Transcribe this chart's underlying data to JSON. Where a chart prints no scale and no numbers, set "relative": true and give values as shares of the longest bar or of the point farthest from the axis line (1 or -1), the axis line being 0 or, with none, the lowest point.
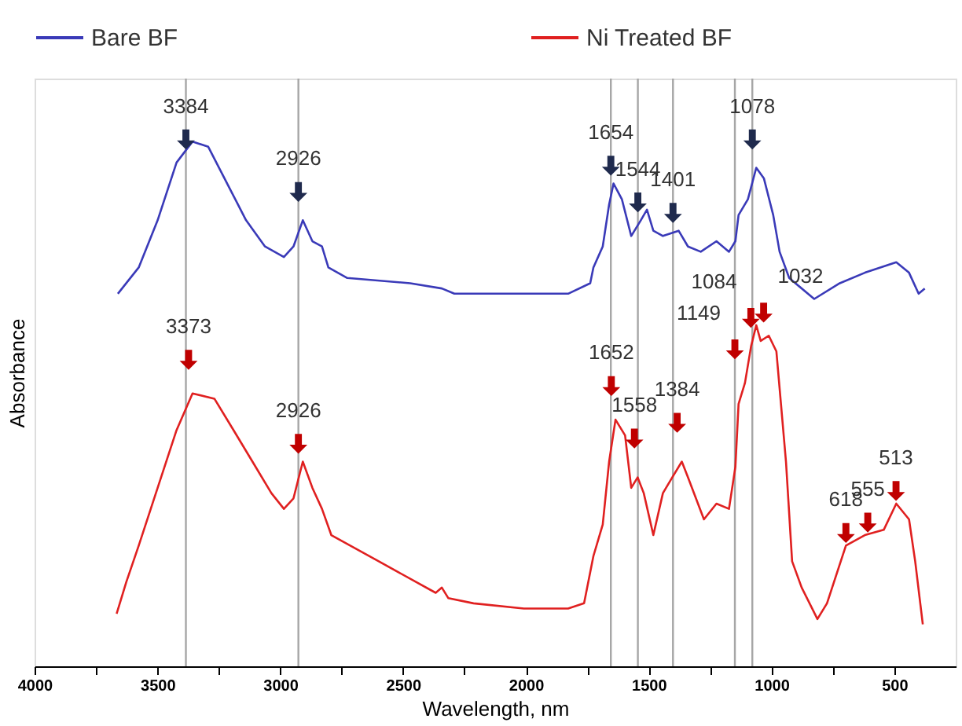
{
  "chart_data": {
    "type": "line",
    "relative": true,
    "xlabel": "Wavelength, nm",
    "ylabel": "Absorbance",
    "legend": "top",
    "tick_labels": "x",
    "grid": false,
    "xlim": [
      4000,
      250
    ],
    "xticks": [
      4000,
      {
        "value": 3750,
        "label": null
      },
      3500,
      {
        "value": 3250,
        "label": null
      },
      3000,
      {
        "value": 2750,
        "label": null
      },
      2500,
      {
        "value": 2250,
        "label": null
      },
      2000,
      {
        "value": 1750,
        "label": null
      },
      1500,
      {
        "value": 1250,
        "label": null
      },
      1000,
      {
        "value": 750,
        "label": null
      },
      500
    ],
    "series": [
      {
        "name": "Bare BF",
        "color": "#3a3ab8",
        "x": [
          3661,
          3576,
          3499,
          3422,
          3357,
          3293,
          3216,
          3139,
          3062,
          2985,
          2946,
          2908,
          2869,
          2830,
          2804,
          2727,
          2471,
          2342,
          2291,
          2085,
          1828,
          1738,
          1725,
          1687,
          1661,
          1643,
          1609,
          1571,
          1532,
          1507,
          1481,
          1442,
          1378,
          1340,
          1288,
          1224,
          1173,
          1147,
          1134,
          1096,
          1062,
          1031,
          993,
          967,
          928,
          826,
          722,
          620,
          492,
          440,
          401,
          376
        ],
        "values": [
          0.71,
          0.76,
          0.85,
          0.96,
          1.0,
          0.99,
          0.92,
          0.85,
          0.8,
          0.78,
          0.8,
          0.85,
          0.81,
          0.8,
          0.76,
          0.74,
          0.73,
          0.72,
          0.71,
          0.71,
          0.71,
          0.73,
          0.76,
          0.8,
          0.88,
          0.92,
          0.89,
          0.82,
          0.85,
          0.87,
          0.83,
          0.82,
          0.83,
          0.8,
          0.79,
          0.81,
          0.79,
          0.81,
          0.86,
          0.89,
          0.95,
          0.93,
          0.86,
          0.79,
          0.74,
          0.7,
          0.73,
          0.75,
          0.77,
          0.75,
          0.71,
          0.72
        ]
      },
      {
        "name": "Ni Treated BF",
        "color": "#e02020",
        "x": [
          3666,
          3627,
          3576,
          3499,
          3422,
          3357,
          3268,
          3190,
          3113,
          3036,
          2985,
          2946,
          2908,
          2869,
          2830,
          2792,
          2599,
          2367,
          2342,
          2316,
          2213,
          2008,
          1828,
          1763,
          1725,
          1687,
          1661,
          1635,
          1596,
          1571,
          1545,
          1520,
          1481,
          1442,
          1404,
          1365,
          1340,
          1275,
          1224,
          1173,
          1147,
          1134,
          1108,
          1083,
          1062,
          1044,
          1011,
          980,
          941,
          916,
          877,
          813,
          774,
          697,
          620,
          543,
          492,
          440,
          415,
          384
        ],
        "values": [
          0.1,
          0.16,
          0.23,
          0.34,
          0.45,
          0.52,
          0.51,
          0.45,
          0.39,
          0.33,
          0.3,
          0.32,
          0.39,
          0.34,
          0.3,
          0.25,
          0.2,
          0.14,
          0.15,
          0.13,
          0.12,
          0.11,
          0.11,
          0.12,
          0.21,
          0.27,
          0.39,
          0.47,
          0.44,
          0.34,
          0.36,
          0.33,
          0.25,
          0.33,
          0.36,
          0.39,
          0.36,
          0.28,
          0.31,
          0.3,
          0.38,
          0.5,
          0.54,
          0.61,
          0.65,
          0.62,
          0.63,
          0.6,
          0.39,
          0.2,
          0.15,
          0.09,
          0.12,
          0.23,
          0.25,
          0.26,
          0.31,
          0.28,
          0.2,
          0.08
        ]
      }
    ],
    "ref_lines": [
      {
        "axis": "x",
        "value": 3384,
        "color": "#a6a6a6"
      },
      {
        "axis": "x",
        "value": 2926,
        "color": "#a6a6a6"
      },
      {
        "axis": "x",
        "value": 1654,
        "color": "#a6a6a6"
      },
      {
        "axis": "x",
        "value": 1544,
        "color": "#a6a6a6"
      },
      {
        "axis": "x",
        "value": 1401,
        "color": "#a6a6a6"
      },
      {
        "axis": "x",
        "value": 1149,
        "color": "#a6a6a6"
      },
      {
        "axis": "x",
        "value": 1078,
        "color": "#a6a6a6"
      }
    ],
    "annotations": [
      {
        "text": "3384",
        "x": 3384,
        "y": 0.98
      },
      {
        "text": "2926",
        "x": 2926,
        "y": 0.88
      },
      {
        "text": "1654",
        "x": 1654,
        "y": 0.93
      },
      {
        "text": "1544",
        "x": 1544,
        "y": 0.86
      },
      {
        "text": "1401",
        "x": 1401,
        "y": 0.84
      },
      {
        "text": "1078",
        "x": 1078,
        "y": 0.98
      },
      {
        "text": "3373",
        "x": 3373,
        "y": 0.56
      },
      {
        "text": "2926",
        "x": 2926,
        "y": 0.4
      },
      {
        "text": "1652",
        "x": 1652,
        "y": 0.51
      },
      {
        "text": "1558",
        "x": 1558,
        "y": 0.41
      },
      {
        "text": "1384",
        "x": 1384,
        "y": 0.44
      },
      {
        "text": "1149",
        "x": 1149,
        "y": 0.58
      },
      {
        "text": "1084",
        "x": 1084,
        "y": 0.64
      },
      {
        "text": "1032",
        "x": 1032,
        "y": 0.65
      },
      {
        "text": "618",
        "x": 697,
        "y": 0.23
      },
      {
        "text": "555",
        "x": 608,
        "y": 0.25
      },
      {
        "text": "513",
        "x": 493,
        "y": 0.31
      }
    ]
  }
}
